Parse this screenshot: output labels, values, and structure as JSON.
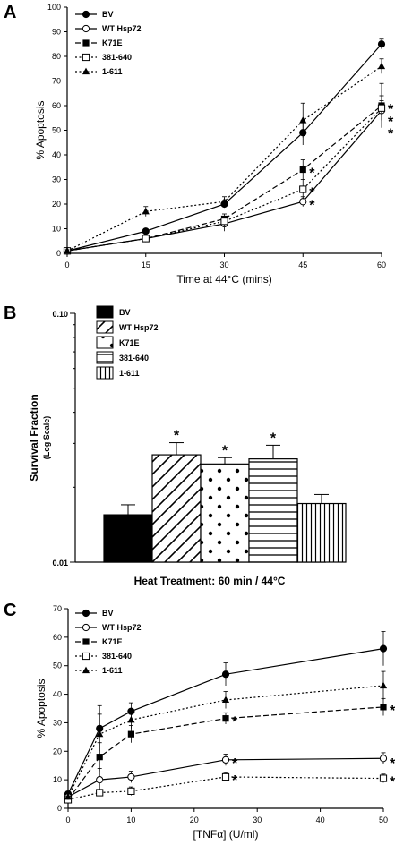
{
  "chart_data": [
    {
      "panel": "A",
      "type": "line",
      "xlabel": "Time at 44°C (mins)",
      "ylabel": "% Apoptosis",
      "x": [
        0,
        15,
        30,
        45,
        60
      ],
      "xticks": [
        "0",
        "15",
        "30",
        "45",
        "60"
      ],
      "yticks": [
        "0",
        "10",
        "20",
        "30",
        "40",
        "50",
        "60",
        "70",
        "80",
        "90",
        "100"
      ],
      "xlim": [
        0,
        60
      ],
      "ylim": [
        0,
        100
      ],
      "series": [
        {
          "name": "BV",
          "marker": "filled-circle",
          "dash": "solid",
          "values": [
            1,
            9,
            20,
            49,
            85
          ],
          "err": [
            0.5,
            1,
            1.5,
            5,
            2
          ]
        },
        {
          "name": "WT Hsp72",
          "marker": "open-circle",
          "dash": "solid",
          "values": [
            1,
            6,
            12,
            21,
            58
          ],
          "err": [
            0.5,
            1,
            3,
            2,
            4
          ]
        },
        {
          "name": "K71E",
          "marker": "filled-square",
          "dash": "dashed",
          "values": [
            1,
            6,
            14,
            34,
            60
          ],
          "err": [
            0.5,
            1,
            2,
            4,
            9
          ]
        },
        {
          "name": "381-640",
          "marker": "open-square",
          "dash": "dotted",
          "values": [
            1,
            6,
            13,
            26,
            59
          ],
          "err": [
            0.5,
            1,
            2,
            4,
            5
          ]
        },
        {
          "name": "1-611",
          "marker": "filled-triangle",
          "dash": "dotted",
          "values": [
            1,
            17,
            21,
            54,
            76
          ],
          "err": [
            0.5,
            2,
            2,
            7,
            3
          ]
        }
      ],
      "asterisks": [
        {
          "series": "WT Hsp72",
          "x": 45,
          "y": 21
        },
        {
          "series": "K71E",
          "x": 45,
          "y": 34
        },
        {
          "series": "381-640",
          "x": 45,
          "y": 26
        },
        {
          "series": "BV",
          "x": 60,
          "y": 60
        },
        {
          "series": "K71E",
          "x": 60,
          "y": 55
        },
        {
          "series": "381-640",
          "x": 60,
          "y": 50
        }
      ]
    },
    {
      "panel": "B",
      "type": "bar",
      "xlabel": "Heat Treatment: 60 min / 44°C",
      "ylabel": "Survival Fraction",
      "ylabel_sub": "(Log Scale)",
      "yscale": "log",
      "ylim": [
        0.01,
        0.1
      ],
      "yticks": [
        "0.01",
        "0.10"
      ],
      "categories": [
        "BV",
        "WT Hsp72",
        "K71E",
        "381-640",
        "1-611"
      ],
      "patterns": [
        "solid",
        "diagonal",
        "dots",
        "horizontal",
        "vertical"
      ],
      "values": [
        0.0155,
        0.027,
        0.0248,
        0.026,
        0.0172
      ],
      "err": [
        0.0015,
        0.0032,
        0.0015,
        0.0035,
        0.0015
      ],
      "significant": [
        false,
        true,
        true,
        true,
        false
      ]
    },
    {
      "panel": "C",
      "type": "line",
      "xlabel": "[TNFα] (U/ml)",
      "ylabel": "% Apoptosis",
      "x": [
        0,
        5,
        10,
        25,
        50
      ],
      "xticks": [
        "0",
        "10",
        "20",
        "30",
        "40",
        "50"
      ],
      "yticks": [
        "0",
        "10",
        "20",
        "30",
        "40",
        "50",
        "60",
        "70"
      ],
      "xlim": [
        0,
        50
      ],
      "ylim": [
        0,
        70
      ],
      "series": [
        {
          "name": "BV",
          "marker": "filled-circle",
          "dash": "solid",
          "values": [
            5,
            28,
            34,
            47,
            56
          ],
          "err": [
            1,
            8,
            3,
            4,
            6
          ]
        },
        {
          "name": "WT Hsp72",
          "marker": "open-circle",
          "dash": "solid",
          "values": [
            4,
            10,
            11,
            17,
            17.5
          ],
          "err": [
            1,
            4,
            2,
            2,
            2
          ]
        },
        {
          "name": "K71E",
          "marker": "filled-square",
          "dash": "dashed",
          "values": [
            3,
            18,
            26,
            31.5,
            35.5
          ],
          "err": [
            1,
            5,
            3,
            2,
            3
          ]
        },
        {
          "name": "381-640",
          "marker": "open-square",
          "dash": "dotted",
          "values": [
            3,
            5.5,
            6,
            11,
            10.5
          ],
          "err": [
            1,
            1,
            1.5,
            1.5,
            1.5
          ]
        },
        {
          "name": "1-611",
          "marker": "filled-triangle",
          "dash": "dotted",
          "values": [
            4,
            26,
            31,
            38,
            43
          ],
          "err": [
            1,
            7,
            3,
            3,
            5
          ]
        }
      ],
      "asterisks": [
        {
          "series": "K71E",
          "x": 25,
          "y": 31.5
        },
        {
          "series": "WT Hsp72",
          "x": 25,
          "y": 17
        },
        {
          "series": "381-640",
          "x": 25,
          "y": 11
        },
        {
          "series": "K71E",
          "x": 50,
          "y": 35.5
        },
        {
          "series": "WT Hsp72",
          "x": 50,
          "y": 17
        },
        {
          "series": "381-640",
          "x": 50,
          "y": 10.5
        }
      ]
    }
  ]
}
